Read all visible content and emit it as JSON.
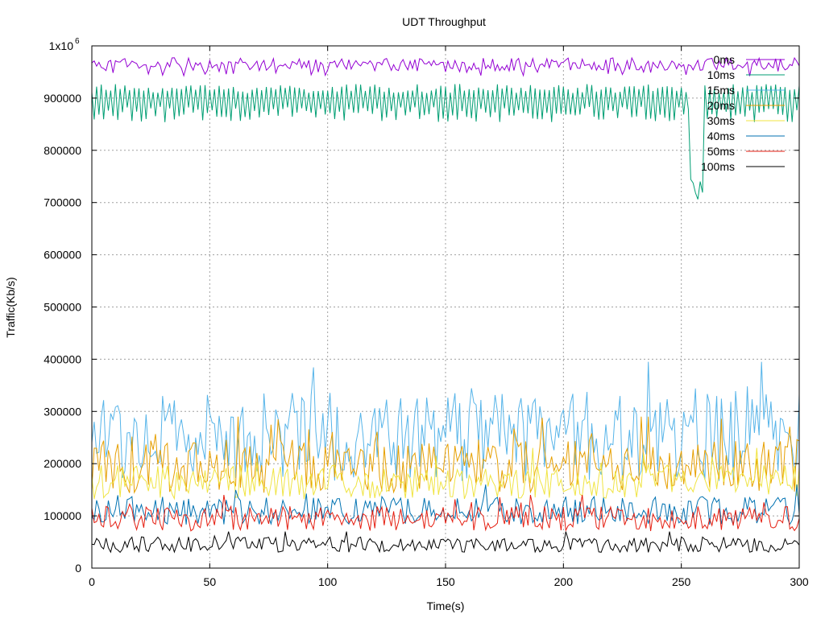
{
  "chart_data": {
    "type": "line",
    "title": "UDT Throughput",
    "xlabel": "Time(s)",
    "ylabel": "Traffic(Kb/s)",
    "xlim": [
      0,
      300
    ],
    "ylim": [
      0,
      1000000
    ],
    "x_ticks": [
      "0",
      "50",
      "100",
      "150",
      "200",
      "250",
      "300"
    ],
    "y_ticks": [
      "0",
      "100000",
      "200000",
      "300000",
      "400000",
      "500000",
      "600000",
      "700000",
      "800000",
      "900000"
    ],
    "y_top_tick_label": "1x10",
    "y_top_tick_exponent": "6",
    "grid": true,
    "legend_position": "top-right",
    "x_step": 1,
    "x_count": 300,
    "series": [
      {
        "name": "0ms",
        "color": "#9400d3",
        "approx_mean": 965000,
        "approx_min": 940000,
        "approx_max": 985000
      },
      {
        "name": "10ms",
        "color": "#009e73",
        "approx_mean": 900000,
        "approx_min": 700000,
        "approx_max": 955000
      },
      {
        "name": "15ms",
        "color": "#56b4e9",
        "approx_mean": 250000,
        "approx_min": 110000,
        "approx_max": 395000
      },
      {
        "name": "20ms",
        "color": "#e69f00",
        "approx_mean": 195000,
        "approx_min": 120000,
        "approx_max": 290000
      },
      {
        "name": "30ms",
        "color": "#f0e442",
        "approx_mean": 165000,
        "approx_min": 120000,
        "approx_max": 230000
      },
      {
        "name": "40ms",
        "color": "#0072b2",
        "approx_mean": 110000,
        "approx_min": 70000,
        "approx_max": 160000
      },
      {
        "name": "50ms",
        "color": "#e51e10",
        "approx_mean": 95000,
        "approx_min": 60000,
        "approx_max": 140000
      },
      {
        "name": "100ms",
        "color": "#000000",
        "approx_mean": 45000,
        "approx_min": 20000,
        "approx_max": 70000
      }
    ]
  }
}
